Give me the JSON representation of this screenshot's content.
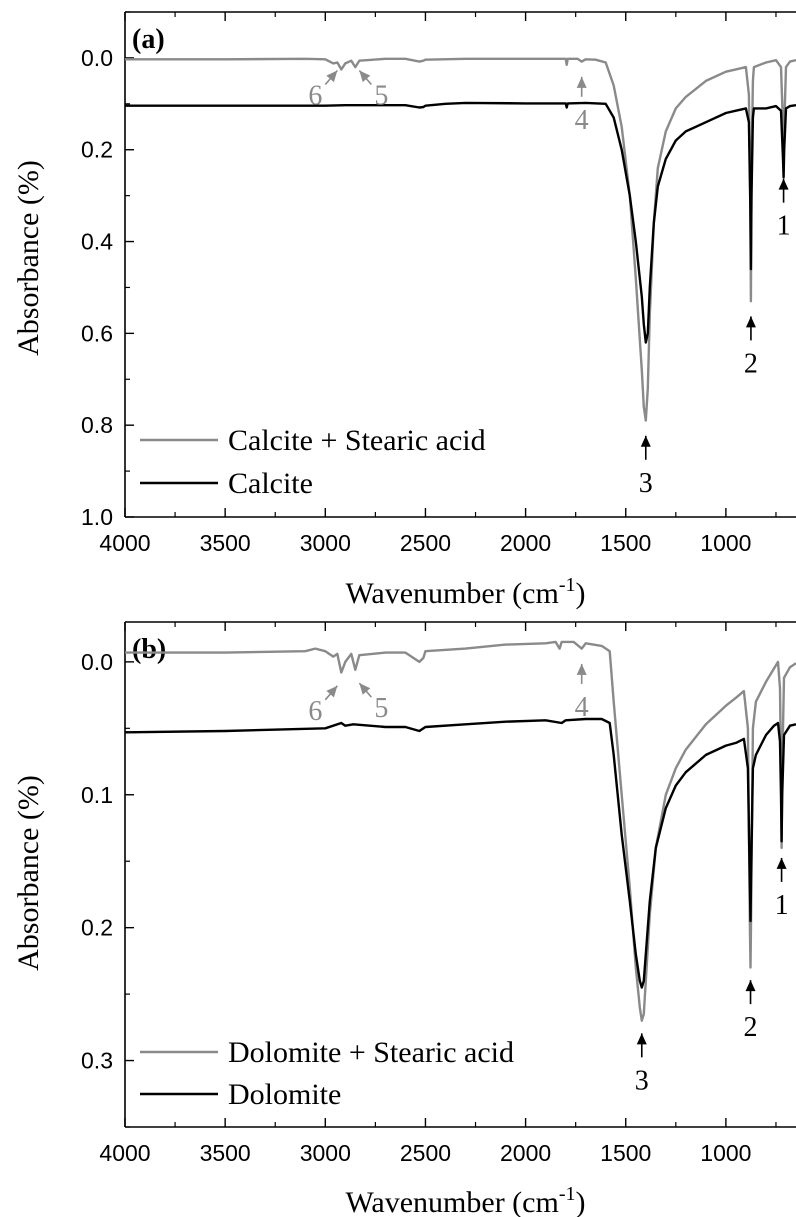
{
  "colors": {
    "gray": "#8a8a8a",
    "black": "#000000"
  },
  "chart_data": [
    {
      "type": "line",
      "panel_label": "(a)",
      "xlabel": "Wavenumber (cm",
      "xlabel_sup": "-1",
      "xlabel_end": ")",
      "ylabel": "Absorbance (%)",
      "xlim": [
        4000,
        650
      ],
      "ylim": [
        1.0,
        -0.1
      ],
      "x_ticks": [
        4000,
        3500,
        3000,
        2500,
        2000,
        1500,
        1000
      ],
      "x_tick_labels": [
        "4000",
        "3500",
        "3000",
        "2500",
        "2000",
        "1500",
        "1000"
      ],
      "y_ticks": [
        0.0,
        0.2,
        0.4,
        0.6,
        0.8,
        1.0
      ],
      "y_tick_labels": [
        "0.0",
        "0.2",
        "0.4",
        "0.6",
        "0.8",
        "1.0"
      ],
      "series": [
        {
          "name": "Calcite + Stearic acid",
          "color": "#8a8a8a",
          "points": [
            [
              4000,
              0.003
            ],
            [
              3500,
              0.003
            ],
            [
              3100,
              0.002
            ],
            [
              3000,
              0.003
            ],
            [
              2960,
              0.012
            ],
            [
              2940,
              0.01
            ],
            [
              2920,
              0.025
            ],
            [
              2900,
              0.012
            ],
            [
              2870,
              0.006
            ],
            [
              2850,
              0.02
            ],
            [
              2830,
              0.006
            ],
            [
              2700,
              0.002
            ],
            [
              2600,
              0.002
            ],
            [
              2530,
              0.008
            ],
            [
              2510,
              0.006
            ],
            [
              2500,
              0.004
            ],
            [
              2300,
              0.002
            ],
            [
              2000,
              0.002
            ],
            [
              1800,
              0.002
            ],
            [
              1795,
              0.015
            ],
            [
              1790,
              0.002
            ],
            [
              1740,
              0.002
            ],
            [
              1720,
              0.008
            ],
            [
              1700,
              0.003
            ],
            [
              1650,
              0.004
            ],
            [
              1600,
              0.01
            ],
            [
              1560,
              0.06
            ],
            [
              1520,
              0.15
            ],
            [
              1480,
              0.3
            ],
            [
              1450,
              0.48
            ],
            [
              1420,
              0.68
            ],
            [
              1410,
              0.76
            ],
            [
              1400,
              0.79
            ],
            [
              1390,
              0.72
            ],
            [
              1380,
              0.56
            ],
            [
              1360,
              0.36
            ],
            [
              1340,
              0.24
            ],
            [
              1300,
              0.16
            ],
            [
              1250,
              0.11
            ],
            [
              1200,
              0.085
            ],
            [
              1100,
              0.05
            ],
            [
              1000,
              0.03
            ],
            [
              950,
              0.025
            ],
            [
              900,
              0.02
            ],
            [
              885,
              0.08
            ],
            [
              878,
              0.3
            ],
            [
              875,
              0.53
            ],
            [
              872,
              0.25
            ],
            [
              865,
              0.05
            ],
            [
              860,
              0.02
            ],
            [
              800,
              0.01
            ],
            [
              750,
              0.005
            ],
            [
              725,
              0.02
            ],
            [
              715,
              0.15
            ],
            [
              712,
              0.23
            ],
            [
              709,
              0.15
            ],
            [
              700,
              0.02
            ],
            [
              680,
              0.008
            ],
            [
              650,
              0.005
            ]
          ]
        },
        {
          "name": "Calcite",
          "color": "#000000",
          "points": [
            [
              4000,
              0.104
            ],
            [
              3500,
              0.104
            ],
            [
              3000,
              0.104
            ],
            [
              2900,
              0.103
            ],
            [
              2600,
              0.103
            ],
            [
              2530,
              0.108
            ],
            [
              2510,
              0.107
            ],
            [
              2500,
              0.104
            ],
            [
              2400,
              0.1
            ],
            [
              2300,
              0.098
            ],
            [
              2000,
              0.099
            ],
            [
              1800,
              0.099
            ],
            [
              1795,
              0.108
            ],
            [
              1790,
              0.099
            ],
            [
              1700,
              0.098
            ],
            [
              1600,
              0.1
            ],
            [
              1560,
              0.13
            ],
            [
              1520,
              0.2
            ],
            [
              1480,
              0.3
            ],
            [
              1450,
              0.4
            ],
            [
              1420,
              0.52
            ],
            [
              1410,
              0.58
            ],
            [
              1400,
              0.62
            ],
            [
              1390,
              0.6
            ],
            [
              1380,
              0.5
            ],
            [
              1360,
              0.36
            ],
            [
              1340,
              0.28
            ],
            [
              1300,
              0.22
            ],
            [
              1250,
              0.18
            ],
            [
              1200,
              0.16
            ],
            [
              1100,
              0.14
            ],
            [
              1000,
              0.12
            ],
            [
              950,
              0.115
            ],
            [
              900,
              0.11
            ],
            [
              885,
              0.14
            ],
            [
              878,
              0.32
            ],
            [
              875,
              0.46
            ],
            [
              872,
              0.3
            ],
            [
              865,
              0.13
            ],
            [
              860,
              0.11
            ],
            [
              800,
              0.11
            ],
            [
              750,
              0.105
            ],
            [
              725,
              0.115
            ],
            [
              715,
              0.22
            ],
            [
              712,
              0.26
            ],
            [
              709,
              0.2
            ],
            [
              700,
              0.11
            ],
            [
              680,
              0.105
            ],
            [
              650,
              0.103
            ]
          ]
        }
      ],
      "legend": [
        {
          "label": "Calcite + Stearic acid",
          "color": "#8a8a8a"
        },
        {
          "label": "Calcite",
          "color": "#000000"
        }
      ],
      "legend_position": "bottom-left",
      "annotations": [
        {
          "text": "1",
          "x": 712,
          "y": 0.25,
          "dir": "up",
          "color": "#000000"
        },
        {
          "text": "2",
          "x": 875,
          "y": 0.55,
          "dir": "up",
          "color": "#000000"
        },
        {
          "text": "3",
          "x": 1400,
          "y": 0.81,
          "dir": "up",
          "color": "#000000"
        },
        {
          "text": "4",
          "x": 1720,
          "y": 0.002,
          "dir": "down",
          "color": "#8a8a8a"
        },
        {
          "text": "5",
          "x": 2850,
          "y": 0.01,
          "dir": "down-right",
          "color": "#8a8a8a"
        },
        {
          "text": "6",
          "x": 2920,
          "y": 0.01,
          "dir": "down-left",
          "color": "#8a8a8a"
        }
      ]
    },
    {
      "type": "line",
      "panel_label": "(b)",
      "xlabel": "Wavenumber (cm",
      "xlabel_sup": "-1",
      "xlabel_end": ")",
      "ylabel": "Absorbance (%)",
      "xlim": [
        4000,
        650
      ],
      "ylim": [
        0.35,
        -0.03
      ],
      "x_ticks": [
        4000,
        3500,
        3000,
        2500,
        2000,
        1500,
        1000
      ],
      "x_tick_labels": [
        "4000",
        "3500",
        "3000",
        "2500",
        "2000",
        "1500",
        "1000"
      ],
      "y_ticks": [
        0.0,
        0.1,
        0.2,
        0.3
      ],
      "y_tick_labels": [
        "0.0",
        "0.1",
        "0.2",
        "0.3"
      ],
      "series": [
        {
          "name": "Dolomite + Stearic acid",
          "color": "#8a8a8a",
          "points": [
            [
              4000,
              -0.007
            ],
            [
              3500,
              -0.007
            ],
            [
              3100,
              -0.008
            ],
            [
              3050,
              -0.01
            ],
            [
              3000,
              -0.008
            ],
            [
              2960,
              -0.004
            ],
            [
              2940,
              -0.006
            ],
            [
              2920,
              0.008
            ],
            [
              2900,
              0.0
            ],
            [
              2870,
              -0.006
            ],
            [
              2850,
              0.006
            ],
            [
              2830,
              -0.005
            ],
            [
              2700,
              -0.007
            ],
            [
              2600,
              -0.007
            ],
            [
              2530,
              0.0
            ],
            [
              2510,
              -0.003
            ],
            [
              2500,
              -0.008
            ],
            [
              2300,
              -0.01
            ],
            [
              2100,
              -0.013
            ],
            [
              1900,
              -0.014
            ],
            [
              1850,
              -0.015
            ],
            [
              1830,
              -0.01
            ],
            [
              1820,
              -0.015
            ],
            [
              1760,
              -0.015
            ],
            [
              1720,
              -0.01
            ],
            [
              1700,
              -0.014
            ],
            [
              1620,
              -0.012
            ],
            [
              1580,
              -0.008
            ],
            [
              1560,
              0.03
            ],
            [
              1520,
              0.1
            ],
            [
              1480,
              0.17
            ],
            [
              1450,
              0.23
            ],
            [
              1430,
              0.26
            ],
            [
              1420,
              0.27
            ],
            [
              1410,
              0.265
            ],
            [
              1400,
              0.24
            ],
            [
              1380,
              0.19
            ],
            [
              1350,
              0.14
            ],
            [
              1300,
              0.1
            ],
            [
              1250,
              0.08
            ],
            [
              1200,
              0.066
            ],
            [
              1100,
              0.047
            ],
            [
              1000,
              0.033
            ],
            [
              950,
              0.027
            ],
            [
              910,
              0.022
            ],
            [
              890,
              0.05
            ],
            [
              880,
              0.2
            ],
            [
              877,
              0.23
            ],
            [
              874,
              0.19
            ],
            [
              865,
              0.05
            ],
            [
              850,
              0.03
            ],
            [
              800,
              0.015
            ],
            [
              760,
              0.005
            ],
            [
              740,
              0.0
            ],
            [
              730,
              0.02
            ],
            [
              725,
              0.08
            ],
            [
              722,
              0.14
            ],
            [
              719,
              0.08
            ],
            [
              710,
              0.012
            ],
            [
              680,
              0.004
            ],
            [
              650,
              0.001
            ]
          ]
        },
        {
          "name": "Dolomite",
          "color": "#000000",
          "points": [
            [
              4000,
              0.053
            ],
            [
              3500,
              0.052
            ],
            [
              3000,
              0.05
            ],
            [
              2920,
              0.046
            ],
            [
              2900,
              0.048
            ],
            [
              2860,
              0.047
            ],
            [
              2700,
              0.049
            ],
            [
              2600,
              0.049
            ],
            [
              2530,
              0.052
            ],
            [
              2500,
              0.049
            ],
            [
              2300,
              0.047
            ],
            [
              2100,
              0.045
            ],
            [
              1900,
              0.044
            ],
            [
              1820,
              0.046
            ],
            [
              1800,
              0.044
            ],
            [
              1700,
              0.043
            ],
            [
              1620,
              0.043
            ],
            [
              1580,
              0.046
            ],
            [
              1560,
              0.07
            ],
            [
              1520,
              0.13
            ],
            [
              1480,
              0.18
            ],
            [
              1450,
              0.22
            ],
            [
              1430,
              0.24
            ],
            [
              1420,
              0.245
            ],
            [
              1410,
              0.24
            ],
            [
              1400,
              0.22
            ],
            [
              1380,
              0.18
            ],
            [
              1350,
              0.14
            ],
            [
              1300,
              0.11
            ],
            [
              1250,
              0.093
            ],
            [
              1200,
              0.083
            ],
            [
              1100,
              0.07
            ],
            [
              1000,
              0.063
            ],
            [
              950,
              0.061
            ],
            [
              910,
              0.058
            ],
            [
              890,
              0.08
            ],
            [
              880,
              0.17
            ],
            [
              877,
              0.195
            ],
            [
              874,
              0.16
            ],
            [
              865,
              0.08
            ],
            [
              850,
              0.07
            ],
            [
              800,
              0.055
            ],
            [
              760,
              0.048
            ],
            [
              740,
              0.046
            ],
            [
              730,
              0.06
            ],
            [
              725,
              0.1
            ],
            [
              722,
              0.135
            ],
            [
              719,
              0.1
            ],
            [
              710,
              0.055
            ],
            [
              680,
              0.048
            ],
            [
              650,
              0.047
            ]
          ]
        }
      ],
      "legend": [
        {
          "label": "Dolomite + Stearic acid",
          "color": "#8a8a8a"
        },
        {
          "label": "Dolomite",
          "color": "#000000"
        }
      ],
      "legend_position": "bottom-left",
      "annotations": [
        {
          "text": "1",
          "x": 722,
          "y": 0.143,
          "dir": "up",
          "color": "#000000"
        },
        {
          "text": "2",
          "x": 877,
          "y": 0.235,
          "dir": "up",
          "color": "#000000"
        },
        {
          "text": "3",
          "x": 1420,
          "y": 0.275,
          "dir": "up",
          "color": "#000000"
        },
        {
          "text": "4",
          "x": 1720,
          "y": -0.012,
          "dir": "down",
          "color": "#8a8a8a"
        },
        {
          "text": "5",
          "x": 2850,
          "y": 0.01,
          "dir": "down-right",
          "color": "#8a8a8a"
        },
        {
          "text": "6",
          "x": 2920,
          "y": 0.012,
          "dir": "down-left",
          "color": "#8a8a8a"
        }
      ]
    }
  ]
}
